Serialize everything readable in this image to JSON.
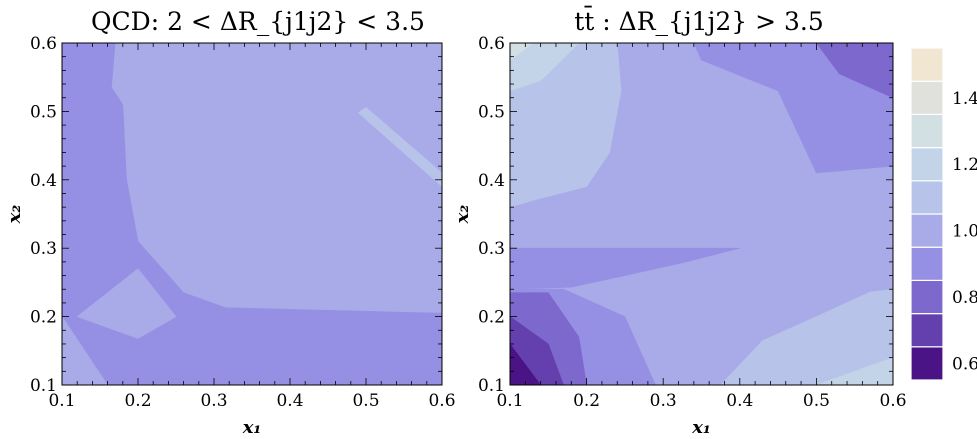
{
  "chart_data": [
    {
      "type": "heatmap",
      "title": "QCD: 2 < ΔR_{j1j2} < 3.5",
      "xlabel": "x₁",
      "ylabel": "x₂",
      "xlim": [
        0.1,
        0.6
      ],
      "ylim": [
        0.1,
        0.6
      ],
      "xticks": [
        "0.1",
        "0.2",
        "0.3",
        "0.4",
        "0.5",
        "0.6"
      ],
      "yticks": [
        "0.1",
        "0.2",
        "0.3",
        "0.4",
        "0.5",
        "0.6"
      ],
      "background_level": 1.0,
      "regions": [
        {
          "level": 0.9,
          "points": [
            [
              0.1,
              0.6
            ],
            [
              0.17,
              0.6
            ],
            [
              0.165,
              0.535
            ],
            [
              0.18,
              0.51
            ],
            [
              0.185,
              0.4
            ],
            [
              0.2,
              0.31
            ],
            [
              0.26,
              0.235
            ],
            [
              0.315,
              0.213
            ],
            [
              0.6,
              0.205
            ],
            [
              0.6,
              0.1
            ],
            [
              0.13,
              0.1
            ],
            [
              0.1,
              0.14
            ]
          ]
        },
        {
          "level": 1.0,
          "points": [
            [
              0.1,
              0.14
            ],
            [
              0.13,
              0.1
            ],
            [
              0.16,
              0.1
            ],
            [
              0.1,
              0.2
            ]
          ]
        },
        {
          "level": 1.0,
          "points": [
            [
              0.12,
              0.2
            ],
            [
              0.2,
              0.27
            ],
            [
              0.25,
              0.2
            ],
            [
              0.2,
              0.168
            ]
          ]
        },
        {
          "level": 1.05,
          "points": [
            [
              0.49,
              0.498
            ],
            [
              0.5,
              0.506
            ],
            [
              0.6,
              0.41
            ],
            [
              0.6,
              0.39
            ]
          ]
        }
      ]
    },
    {
      "type": "heatmap",
      "title": "tt̄ : ΔR_{j1j2} > 3.5",
      "xlabel": "x₁",
      "ylabel": "x₂",
      "xlim": [
        0.1,
        0.6
      ],
      "ylim": [
        0.1,
        0.6
      ],
      "xticks": [
        "0.1",
        "0.2",
        "0.3",
        "0.4",
        "0.5",
        "0.6"
      ],
      "yticks": [
        "0.1",
        "0.2",
        "0.3",
        "0.4",
        "0.5",
        "0.6"
      ],
      "background_level": 1.0,
      "regions": [
        {
          "level": 1.1,
          "points": [
            [
              0.1,
              0.6
            ],
            [
              0.24,
              0.6
            ],
            [
              0.245,
              0.53
            ],
            [
              0.23,
              0.44
            ],
            [
              0.2,
              0.39
            ],
            [
              0.13,
              0.37
            ],
            [
              0.1,
              0.36
            ]
          ]
        },
        {
          "level": 1.2,
          "points": [
            [
              0.1,
              0.6
            ],
            [
              0.19,
              0.6
            ],
            [
              0.14,
              0.545
            ],
            [
              0.1,
              0.53
            ]
          ]
        },
        {
          "level": 1.3,
          "points": [
            [
              0.1,
              0.6
            ],
            [
              0.13,
              0.6
            ],
            [
              0.1,
              0.575
            ]
          ]
        },
        {
          "level": 0.9,
          "points": [
            [
              0.34,
              0.6
            ],
            [
              0.6,
              0.6
            ],
            [
              0.6,
              0.42
            ],
            [
              0.5,
              0.41
            ],
            [
              0.45,
              0.53
            ],
            [
              0.35,
              0.575
            ]
          ]
        },
        {
          "level": 0.8,
          "points": [
            [
              0.5,
              0.6
            ],
            [
              0.6,
              0.6
            ],
            [
              0.6,
              0.52
            ],
            [
              0.53,
              0.555
            ]
          ]
        },
        {
          "level": 0.9,
          "points": [
            [
              0.1,
              0.3
            ],
            [
              0.4,
              0.3
            ],
            [
              0.33,
              0.28
            ],
            [
              0.25,
              0.26
            ],
            [
              0.18,
              0.243
            ],
            [
              0.1,
              0.24
            ]
          ]
        },
        {
          "level": 0.9,
          "points": [
            [
              0.1,
              0.24
            ],
            [
              0.17,
              0.24
            ],
            [
              0.25,
              0.2
            ],
            [
              0.29,
              0.1
            ],
            [
              0.1,
              0.1
            ]
          ]
        },
        {
          "level": 0.8,
          "points": [
            [
              0.1,
              0.235
            ],
            [
              0.15,
              0.235
            ],
            [
              0.19,
              0.17
            ],
            [
              0.2,
              0.1
            ],
            [
              0.1,
              0.1
            ]
          ]
        },
        {
          "level": 0.7,
          "points": [
            [
              0.1,
              0.2
            ],
            [
              0.15,
              0.16
            ],
            [
              0.17,
              0.1
            ],
            [
              0.1,
              0.1
            ]
          ]
        },
        {
          "level": 0.6,
          "points": [
            [
              0.1,
              0.16
            ],
            [
              0.14,
              0.1
            ],
            [
              0.1,
              0.1
            ]
          ]
        },
        {
          "level": 1.1,
          "points": [
            [
              0.6,
              0.24
            ],
            [
              0.57,
              0.236
            ],
            [
              0.5,
              0.2
            ],
            [
              0.43,
              0.165
            ],
            [
              0.375,
              0.1
            ],
            [
              0.6,
              0.1
            ]
          ]
        },
        {
          "level": 1.2,
          "points": [
            [
              0.6,
              0.14
            ],
            [
              0.55,
              0.12
            ],
            [
              0.5,
              0.1
            ],
            [
              0.6,
              0.1
            ]
          ]
        }
      ]
    }
  ],
  "colorbar": {
    "levels": [
      0.6,
      0.7,
      0.8,
      0.9,
      1.0,
      1.1,
      1.2,
      1.3,
      1.4,
      1.5
    ],
    "colors": {
      "0.6": "#4a1487",
      "0.7": "#6440ae",
      "0.8": "#7d68cd",
      "0.9": "#9690e4",
      "1.0": "#a8abe7",
      "1.1": "#b7c3e8",
      "1.2": "#c3d3e8",
      "1.3": "#d2dfe3",
      "1.4": "#e0e0dc",
      "1.5": "#f0e6d2"
    },
    "tick_labels": [
      "0.6",
      "0.8",
      "1.0",
      "1.2",
      "1.4"
    ]
  }
}
